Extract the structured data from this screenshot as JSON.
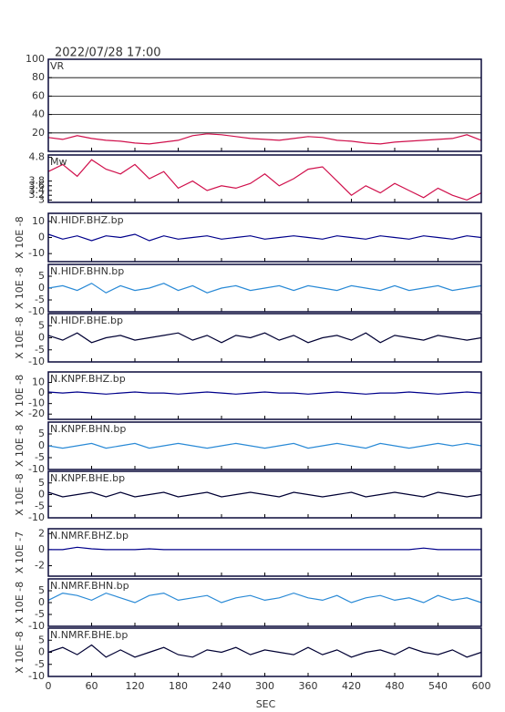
{
  "chart_data": [
    {
      "type": "line",
      "title": "2022/07/28 17:00",
      "label": "VR",
      "color": "#d0104c",
      "grid": true,
      "x": [
        0,
        20,
        40,
        60,
        80,
        100,
        120,
        140,
        160,
        180,
        200,
        220,
        240,
        260,
        280,
        300,
        320,
        340,
        360,
        380,
        400,
        420,
        440,
        460,
        480,
        500,
        520,
        540,
        560,
        580,
        600
      ],
      "values": [
        15,
        13,
        17,
        14,
        12,
        11,
        9,
        8,
        10,
        12,
        17,
        19,
        18,
        16,
        14,
        13,
        12,
        14,
        16,
        15,
        12,
        11,
        9,
        8,
        10,
        11,
        12,
        13,
        14,
        18,
        12
      ],
      "xlim": [
        0,
        600
      ],
      "ylim": [
        0,
        100
      ],
      "yticks": [
        20,
        40,
        60,
        80,
        100
      ]
    },
    {
      "type": "line",
      "label": "Mw",
      "color": "#d0104c",
      "x": [
        0,
        20,
        40,
        60,
        80,
        100,
        120,
        140,
        160,
        180,
        200,
        220,
        240,
        260,
        280,
        300,
        320,
        340,
        360,
        380,
        400,
        420,
        440,
        460,
        480,
        500,
        520,
        540,
        560,
        580,
        600
      ],
      "values": [
        4.2,
        4.5,
        4.0,
        4.7,
        4.3,
        4.1,
        4.5,
        3.9,
        4.2,
        3.5,
        3.8,
        3.4,
        3.6,
        3.5,
        3.7,
        4.1,
        3.6,
        3.9,
        4.3,
        4.4,
        3.8,
        3.2,
        3.6,
        3.3,
        3.7,
        3.4,
        3.1,
        3.5,
        3.2,
        3.0,
        3.3
      ],
      "xlim": [
        0,
        600
      ],
      "ylim": [
        2.9,
        4.9
      ],
      "yticks": [
        3.0,
        3.2,
        3.4,
        3.6,
        3.8,
        4.8
      ]
    },
    {
      "type": "line",
      "label": "N.HIDF.BHZ.bp",
      "ylabel": "X 10E -8",
      "color": "#00008b",
      "x": [
        0,
        20,
        40,
        60,
        80,
        100,
        120,
        140,
        160,
        180,
        200,
        220,
        240,
        260,
        280,
        300,
        320,
        340,
        360,
        380,
        400,
        420,
        440,
        460,
        480,
        500,
        520,
        540,
        560,
        580,
        600
      ],
      "values": [
        2,
        -1,
        1,
        -2,
        1,
        0,
        2,
        -2,
        1,
        -1,
        0,
        1,
        -1,
        0,
        1,
        -1,
        0,
        1,
        0,
        -1,
        1,
        0,
        -1,
        1,
        0,
        -1,
        1,
        0,
        -1,
        1,
        0
      ],
      "xlim": [
        0,
        600
      ],
      "ylim": [
        -15,
        15
      ],
      "yticks": [
        -10,
        0,
        10
      ]
    },
    {
      "type": "line",
      "label": "N.HIDF.BHN.bp",
      "ylabel": "X 10E -8",
      "color": "#2a8ad6",
      "x": [
        0,
        20,
        40,
        60,
        80,
        100,
        120,
        140,
        160,
        180,
        200,
        220,
        240,
        260,
        280,
        300,
        320,
        340,
        360,
        380,
        400,
        420,
        440,
        460,
        480,
        500,
        520,
        540,
        560,
        580,
        600
      ],
      "values": [
        0,
        1,
        -1,
        2,
        -2,
        1,
        -1,
        0,
        2,
        -1,
        1,
        -2,
        0,
        1,
        -1,
        0,
        1,
        -1,
        1,
        0,
        -1,
        1,
        0,
        -1,
        1,
        -1,
        0,
        1,
        -1,
        0,
        1
      ],
      "xlim": [
        0,
        600
      ],
      "ylim": [
        -10,
        10
      ],
      "yticks": [
        -10,
        -5,
        0,
        5
      ]
    },
    {
      "type": "line",
      "label": "N.HIDF.BHE.bp",
      "ylabel": "X 10E -8",
      "color": "#000033",
      "x": [
        0,
        20,
        40,
        60,
        80,
        100,
        120,
        140,
        160,
        180,
        200,
        220,
        240,
        260,
        280,
        300,
        320,
        340,
        360,
        380,
        400,
        420,
        440,
        460,
        480,
        500,
        520,
        540,
        560,
        580,
        600
      ],
      "values": [
        1,
        -1,
        2,
        -2,
        0,
        1,
        -1,
        0,
        1,
        2,
        -1,
        1,
        -2,
        1,
        0,
        2,
        -1,
        1,
        -2,
        0,
        1,
        -1,
        2,
        -2,
        1,
        0,
        -1,
        1,
        0,
        -1,
        0
      ],
      "xlim": [
        0,
        600
      ],
      "ylim": [
        -10,
        10
      ],
      "yticks": [
        -10,
        -5,
        0,
        5
      ]
    },
    {
      "type": "line",
      "label": "N.KNPF.BHZ.bp",
      "ylabel": "X 10E -8",
      "color": "#00008b",
      "x": [
        0,
        20,
        40,
        60,
        80,
        100,
        120,
        140,
        160,
        180,
        200,
        220,
        240,
        260,
        280,
        300,
        320,
        340,
        360,
        380,
        400,
        420,
        440,
        460,
        480,
        500,
        520,
        540,
        560,
        580,
        600
      ],
      "values": [
        1,
        0,
        1,
        0,
        -1,
        0,
        1,
        0,
        0,
        -1,
        0,
        1,
        0,
        -1,
        0,
        1,
        0,
        0,
        -1,
        0,
        1,
        0,
        -1,
        0,
        0,
        1,
        0,
        -1,
        0,
        1,
        0
      ],
      "xlim": [
        0,
        600
      ],
      "ylim": [
        -25,
        20
      ],
      "yticks": [
        -20,
        -10,
        0,
        10
      ]
    },
    {
      "type": "line",
      "label": "N.KNPF.BHN.bp",
      "ylabel": "X 10E -8",
      "color": "#2a8ad6",
      "x": [
        0,
        20,
        40,
        60,
        80,
        100,
        120,
        140,
        160,
        180,
        200,
        220,
        240,
        260,
        280,
        300,
        320,
        340,
        360,
        380,
        400,
        420,
        440,
        460,
        480,
        500,
        520,
        540,
        560,
        580,
        600
      ],
      "values": [
        0,
        -1,
        0,
        1,
        -1,
        0,
        1,
        -1,
        0,
        1,
        0,
        -1,
        0,
        1,
        0,
        -1,
        0,
        1,
        -1,
        0,
        1,
        0,
        -1,
        1,
        0,
        -1,
        0,
        1,
        0,
        1,
        0
      ],
      "xlim": [
        0,
        600
      ],
      "ylim": [
        -10,
        10
      ],
      "yticks": [
        -10,
        -5,
        0,
        5
      ]
    },
    {
      "type": "line",
      "label": "N.KNPF.BHE.bp",
      "ylabel": "X 10E -8",
      "color": "#000033",
      "x": [
        0,
        20,
        40,
        60,
        80,
        100,
        120,
        140,
        160,
        180,
        200,
        220,
        240,
        260,
        280,
        300,
        320,
        340,
        360,
        380,
        400,
        420,
        440,
        460,
        480,
        500,
        520,
        540,
        560,
        580,
        600
      ],
      "values": [
        1,
        -1,
        0,
        1,
        -1,
        1,
        -1,
        0,
        1,
        -1,
        0,
        1,
        -1,
        0,
        1,
        0,
        -1,
        1,
        0,
        -1,
        0,
        1,
        -1,
        0,
        1,
        0,
        -1,
        1,
        0,
        -1,
        0
      ],
      "xlim": [
        0,
        600
      ],
      "ylim": [
        -10,
        10
      ],
      "yticks": [
        -10,
        -5,
        0,
        5
      ]
    },
    {
      "type": "line",
      "label": "N.NMRF.BHZ.bp",
      "ylabel": "X 10E -7",
      "color": "#00008b",
      "x": [
        0,
        20,
        40,
        60,
        80,
        100,
        120,
        140,
        160,
        180,
        200,
        220,
        240,
        260,
        280,
        300,
        320,
        340,
        360,
        380,
        400,
        420,
        440,
        460,
        480,
        500,
        520,
        540,
        560,
        580,
        600
      ],
      "values": [
        0,
        0,
        0.3,
        0.1,
        0,
        0,
        0,
        0.1,
        0,
        0,
        0,
        0,
        0,
        0,
        0,
        0,
        0,
        0,
        0,
        0,
        0,
        0,
        0,
        0,
        0,
        0,
        0.2,
        0,
        0,
        0,
        0
      ],
      "xlim": [
        0,
        600
      ],
      "ylim": [
        -3.3,
        2.6
      ],
      "yticks": [
        -2,
        0,
        2
      ]
    },
    {
      "type": "line",
      "label": "N.NMRF.BHN.bp",
      "ylabel": "X 10E -8",
      "color": "#2a8ad6",
      "x": [
        0,
        20,
        40,
        60,
        80,
        100,
        120,
        140,
        160,
        180,
        200,
        220,
        240,
        260,
        280,
        300,
        320,
        340,
        360,
        380,
        400,
        420,
        440,
        460,
        480,
        500,
        520,
        540,
        560,
        580,
        600
      ],
      "values": [
        1,
        4,
        3,
        1,
        4,
        2,
        0,
        3,
        4,
        1,
        2,
        3,
        0,
        2,
        3,
        1,
        2,
        4,
        2,
        1,
        3,
        0,
        2,
        3,
        1,
        2,
        0,
        3,
        1,
        2,
        0
      ],
      "xlim": [
        0,
        600
      ],
      "ylim": [
        -10,
        10
      ],
      "yticks": [
        -10,
        -5,
        0,
        5
      ]
    },
    {
      "type": "line",
      "label": "N.NMRF.BHE.bp",
      "ylabel": "X 10E -8",
      "color": "#000033",
      "x": [
        0,
        20,
        40,
        60,
        80,
        100,
        120,
        140,
        160,
        180,
        200,
        220,
        240,
        260,
        280,
        300,
        320,
        340,
        360,
        380,
        400,
        420,
        440,
        460,
        480,
        500,
        520,
        540,
        560,
        580,
        600
      ],
      "values": [
        0,
        2,
        -1,
        3,
        -2,
        1,
        -2,
        0,
        2,
        -1,
        -2,
        1,
        0,
        2,
        -1,
        1,
        0,
        -1,
        2,
        -1,
        1,
        -2,
        0,
        1,
        -1,
        2,
        0,
        -1,
        1,
        -2,
        0
      ],
      "xlim": [
        0,
        600
      ],
      "ylim": [
        -10,
        10
      ],
      "yticks": [
        -10,
        -5,
        0,
        5
      ],
      "xlabel": "SEC",
      "xticks": [
        0,
        60,
        120,
        180,
        240,
        300,
        360,
        420,
        480,
        540,
        600
      ]
    }
  ]
}
